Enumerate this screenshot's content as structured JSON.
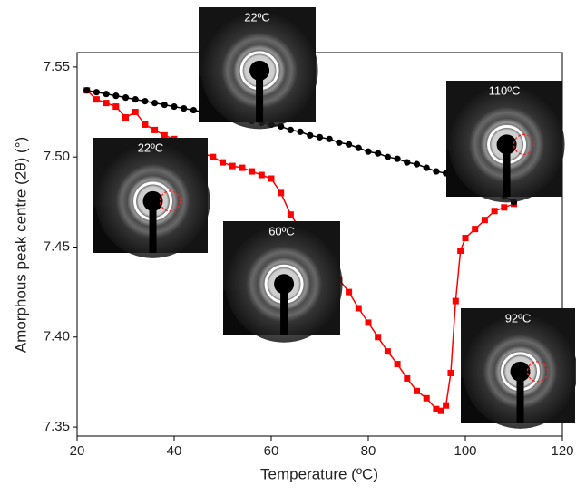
{
  "chart_data": {
    "type": "scatter",
    "xlabel": "Temperature (ºC)",
    "ylabel": "Amorphous peak centre (2θ) (°)",
    "xlim": [
      20,
      120
    ],
    "xticks": [
      20,
      40,
      60,
      80,
      100,
      120
    ],
    "ylim": [
      7.345,
      7.558
    ],
    "yticks": [
      7.35,
      {
        "value": 7.4,
        "label": "7.40"
      },
      7.45,
      {
        "value": 7.5,
        "label": "7.50"
      },
      7.55
    ],
    "series": [
      {
        "color": "#000000",
        "marker": "circle",
        "x": [
          22,
          24,
          26,
          28,
          30,
          32,
          34,
          36,
          38,
          40,
          42,
          44,
          46,
          48,
          50,
          52,
          54,
          56,
          58,
          60,
          62,
          64,
          66,
          68,
          70,
          72,
          74,
          76,
          78,
          80,
          82,
          84,
          86,
          88,
          90,
          92,
          94,
          96,
          98,
          100,
          102,
          104,
          106,
          108,
          110
        ],
        "values": [
          7.537,
          7.536,
          7.535,
          7.534,
          7.533,
          7.532,
          7.531,
          7.53,
          7.529,
          7.528,
          7.527,
          7.526,
          7.525,
          7.524,
          7.523,
          7.522,
          7.521,
          7.52,
          7.519,
          7.518,
          7.517,
          7.515,
          7.514,
          7.512,
          7.511,
          7.51,
          7.508,
          7.507,
          7.505,
          7.503,
          7.502,
          7.5,
          7.499,
          7.497,
          7.496,
          7.494,
          7.492,
          7.491,
          7.489,
          7.487,
          7.485,
          7.483,
          7.481,
          7.478,
          7.475
        ]
      },
      {
        "color": "#ff0000",
        "marker": "square",
        "x": [
          22,
          24,
          26,
          28,
          30,
          32,
          34,
          36,
          38,
          40,
          42,
          44,
          46,
          48,
          50,
          52,
          54,
          56,
          58,
          60,
          62,
          64,
          66,
          68,
          70,
          72,
          74,
          76,
          78,
          80,
          82,
          84,
          86,
          88,
          90,
          92,
          94,
          95,
          96,
          97,
          98,
          99,
          100,
          102,
          104,
          106,
          108,
          110
        ],
        "values": [
          7.537,
          7.532,
          7.53,
          7.528,
          7.522,
          7.525,
          7.518,
          7.515,
          7.512,
          7.51,
          7.508,
          7.505,
          7.502,
          7.5,
          7.497,
          7.495,
          7.494,
          7.492,
          7.49,
          7.488,
          7.48,
          7.468,
          7.46,
          7.452,
          7.445,
          7.44,
          7.432,
          7.425,
          7.416,
          7.408,
          7.4,
          7.392,
          7.385,
          7.377,
          7.37,
          7.366,
          7.36,
          7.359,
          7.362,
          7.38,
          7.42,
          7.448,
          7.455,
          7.46,
          7.465,
          7.47,
          7.472,
          7.474
        ]
      }
    ],
    "annotations": [
      "22ºC",
      "22ºC",
      "60ºC",
      "110ºC",
      "92ºC"
    ]
  }
}
